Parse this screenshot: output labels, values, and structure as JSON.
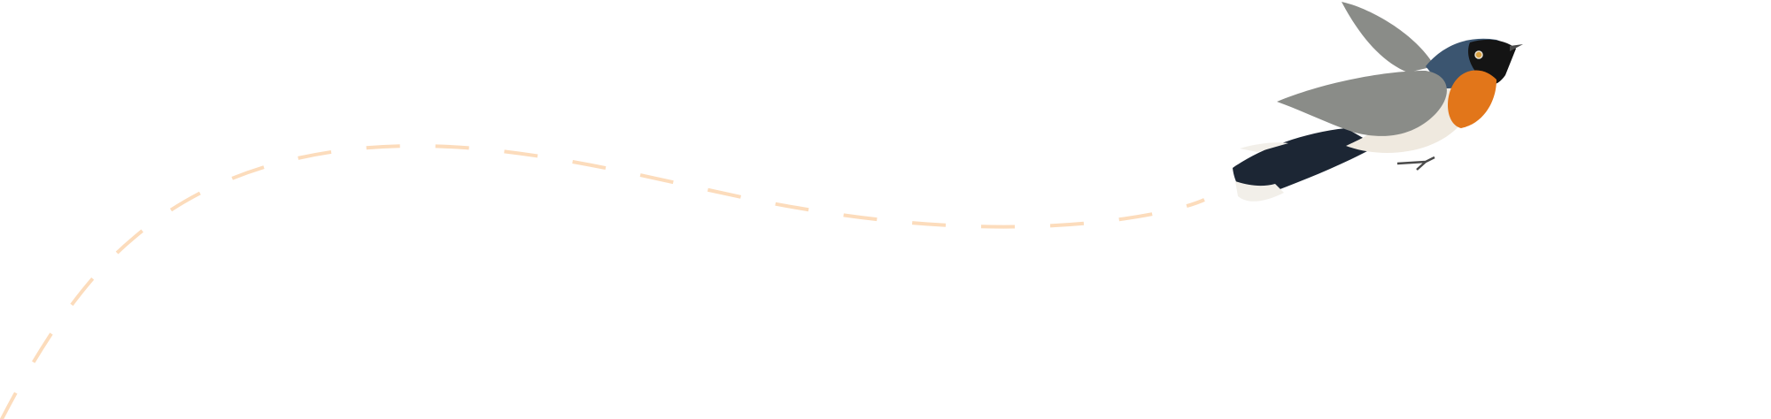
{
  "scene": {
    "background_color": "#ffffff",
    "flight_path": {
      "style": "dashed",
      "color": "#fcdcbc"
    },
    "bird": {
      "subject": "bird-illustration",
      "colors": {
        "head": "#3b5570",
        "mask": "#141414",
        "throat": "#e2761a",
        "belly": "#efe9df",
        "wing": "#8a8c88",
        "tail": "#1c2634",
        "tail_tip": "#f2efe9",
        "beak": "#4a4a4a"
      }
    }
  }
}
